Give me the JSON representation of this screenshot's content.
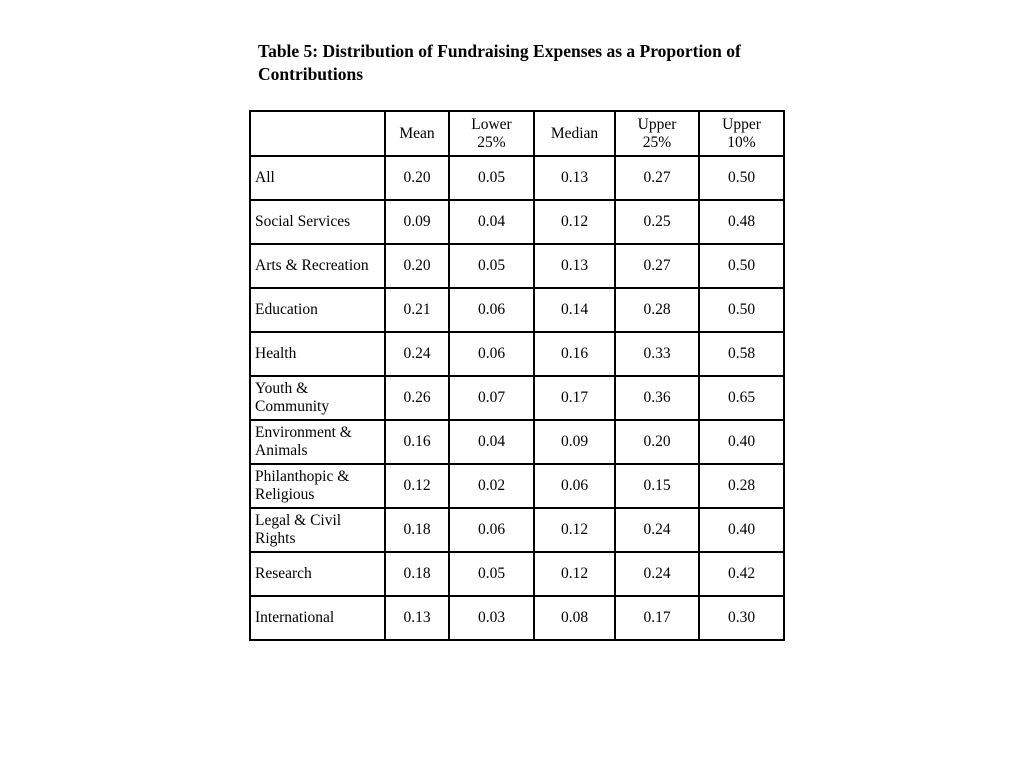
{
  "page": {
    "background_color": "#ffffff",
    "text_color": "#000000",
    "border_color": "#000000"
  },
  "title": {
    "line1": "Table 5: Distribution of Fundraising Expenses as a Proportion of",
    "line2": "Contributions"
  },
  "table": {
    "headers": [
      {
        "lines": []
      },
      {
        "lines": [
          "Mean"
        ]
      },
      {
        "lines": [
          "Lower",
          "25%"
        ]
      },
      {
        "lines": [
          "Median"
        ]
      },
      {
        "lines": [
          "Upper",
          "25%"
        ]
      },
      {
        "lines": [
          "Upper",
          "10%"
        ]
      }
    ],
    "rows": [
      {
        "label": "All",
        "values": [
          "0.20",
          "0.05",
          "0.13",
          "0.27",
          "0.50"
        ]
      },
      {
        "label": "Social Services",
        "values": [
          "0.09",
          "0.04",
          "0.12",
          "0.25",
          "0.48"
        ]
      },
      {
        "label": "Arts & Recreation",
        "values": [
          "0.20",
          "0.05",
          "0.13",
          "0.27",
          "0.50"
        ]
      },
      {
        "label": "Education",
        "values": [
          "0.21",
          "0.06",
          "0.14",
          "0.28",
          "0.50"
        ]
      },
      {
        "label": "Health",
        "values": [
          "0.24",
          "0.06",
          "0.16",
          "0.33",
          "0.58"
        ]
      },
      {
        "label": "Youth & Community",
        "values": [
          "0.26",
          "0.07",
          "0.17",
          "0.36",
          "0.65"
        ]
      },
      {
        "label": "Environment & Animals",
        "values": [
          "0.16",
          "0.04",
          "0.09",
          "0.20",
          "0.40"
        ]
      },
      {
        "label": "Philanthopic & Religious",
        "values": [
          "0.12",
          "0.02",
          "0.06",
          "0.15",
          "0.28"
        ]
      },
      {
        "label": "Legal & Civil Rights",
        "values": [
          "0.18",
          "0.06",
          "0.12",
          "0.24",
          "0.40"
        ]
      },
      {
        "label": "Research",
        "values": [
          "0.18",
          "0.05",
          "0.12",
          "0.24",
          "0.42"
        ]
      },
      {
        "label": "International",
        "values": [
          "0.13",
          "0.03",
          "0.08",
          "0.17",
          "0.30"
        ]
      }
    ]
  }
}
